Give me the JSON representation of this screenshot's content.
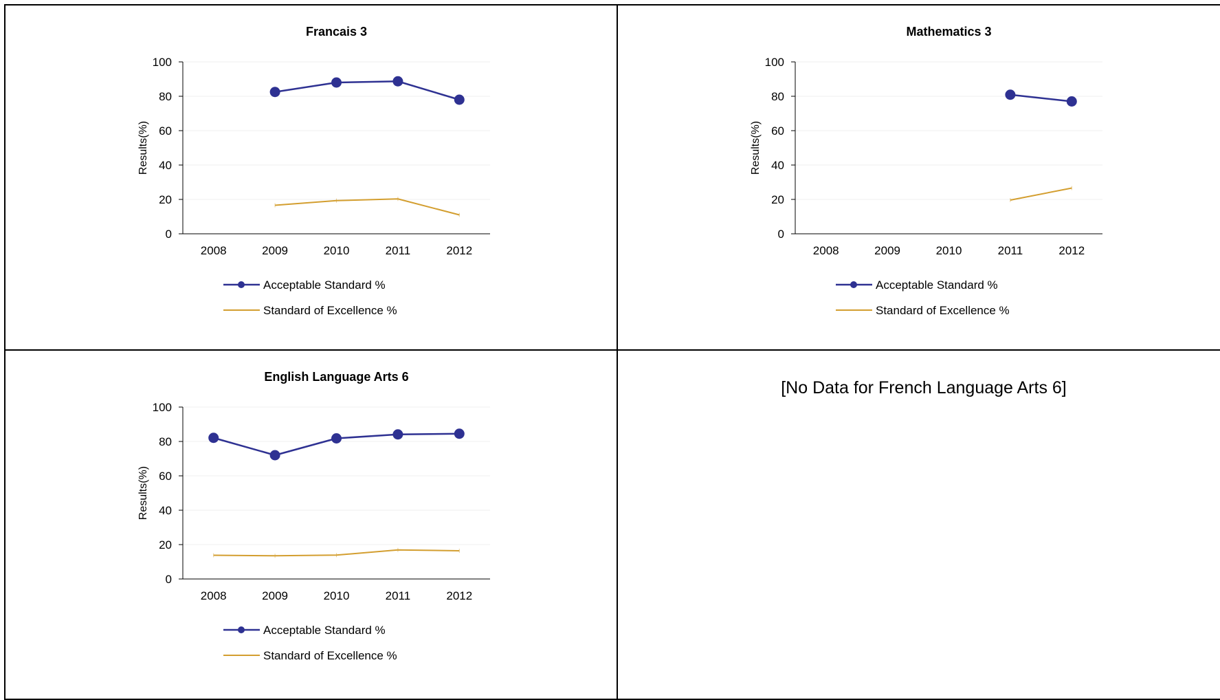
{
  "colors": {
    "acceptable": "#2E3192",
    "excellence": "#D39E2F",
    "grid": "#efefef",
    "axis": "#000000"
  },
  "chart_data": [
    {
      "type": "line",
      "title": "Francais 3",
      "ylabel": "Results(%)",
      "xlabel": "",
      "ylim": [
        0,
        100
      ],
      "yticks": [
        0,
        20,
        40,
        60,
        80,
        100
      ],
      "categories": [
        "2008",
        "2009",
        "2010",
        "2011",
        "2012"
      ],
      "grid": true,
      "legend": "bottom",
      "series": [
        {
          "name": "Acceptable Standard %",
          "values": [
            null,
            82.5,
            88,
            88.7,
            78
          ],
          "marker": true,
          "color_key": "acceptable"
        },
        {
          "name": "Standard of Excellence %",
          "values": [
            null,
            16.6,
            19.3,
            20.3,
            11
          ],
          "marker": false,
          "color_key": "excellence"
        }
      ]
    },
    {
      "type": "line",
      "title": "Mathematics 3",
      "ylabel": "Results(%)",
      "xlabel": "",
      "ylim": [
        0,
        100
      ],
      "yticks": [
        0,
        20,
        40,
        60,
        80,
        100
      ],
      "categories": [
        "2008",
        "2009",
        "2010",
        "2011",
        "2012"
      ],
      "grid": true,
      "legend": "bottom",
      "series": [
        {
          "name": "Acceptable Standard %",
          "values": [
            null,
            null,
            null,
            80.9,
            77
          ],
          "marker": true,
          "color_key": "acceptable"
        },
        {
          "name": "Standard of Excellence %",
          "values": [
            null,
            null,
            null,
            19.6,
            26.6
          ],
          "marker": false,
          "color_key": "excellence"
        }
      ]
    },
    {
      "type": "line",
      "title": "English Language Arts 6",
      "ylabel": "Results(%)",
      "xlabel": "",
      "ylim": [
        0,
        100
      ],
      "yticks": [
        0,
        20,
        40,
        60,
        80,
        100
      ],
      "categories": [
        "2008",
        "2009",
        "2010",
        "2011",
        "2012"
      ],
      "grid": true,
      "legend": "bottom",
      "series": [
        {
          "name": "Acceptable Standard %",
          "values": [
            82.1,
            72,
            81.8,
            84.1,
            84.5
          ],
          "marker": true,
          "color_key": "acceptable"
        },
        {
          "name": "Standard of Excellence %",
          "values": [
            13.8,
            13.5,
            13.9,
            16.9,
            16.4
          ],
          "marker": false,
          "color_key": "excellence"
        }
      ]
    }
  ],
  "no_data_text": "[No Data for French Language Arts 6]"
}
